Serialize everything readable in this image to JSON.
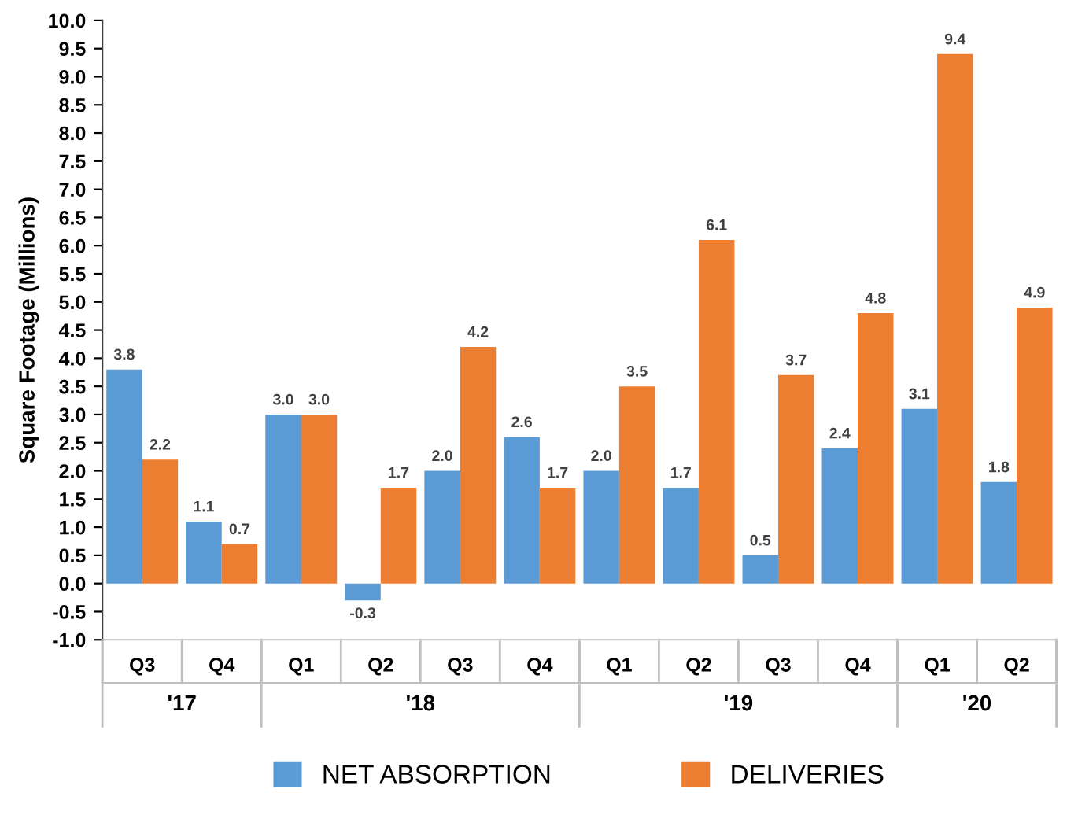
{
  "chart_data": {
    "type": "bar",
    "ylabel": "Square Footage (Millions)",
    "categories": [
      "Q3",
      "Q4",
      "Q1",
      "Q2",
      "Q3",
      "Q4",
      "Q1",
      "Q2",
      "Q3",
      "Q4",
      "Q1",
      "Q2"
    ],
    "series": [
      {
        "name": "NET ABSORPTION",
        "color": "#5b9bd5",
        "values": [
          3.8,
          1.1,
          3.0,
          -0.3,
          2.0,
          2.6,
          2.0,
          1.7,
          0.5,
          2.4,
          3.1,
          1.8
        ],
        "value_labels": [
          "3.8",
          "1.1",
          "3.0",
          "-0.3",
          "2.0",
          "2.6",
          "2.0",
          "1.7",
          "0.5",
          "2.4",
          "3.1",
          "1.8"
        ]
      },
      {
        "name": "DELIVERIES",
        "color": "#ed7d31",
        "values": [
          2.2,
          0.7,
          3.0,
          1.7,
          4.2,
          1.7,
          3.5,
          6.1,
          3.7,
          4.8,
          9.4,
          4.9
        ],
        "value_labels": [
          "2.2",
          "0.7",
          "3.0",
          "1.7",
          "4.2",
          "1.7",
          "3.5",
          "6.1",
          "3.7",
          "4.8",
          "9.4",
          "4.9"
        ]
      }
    ],
    "annotations": [
      "'17",
      "'18",
      "'19",
      "'20"
    ],
    "ylim": [
      -1,
      10
    ],
    "yticks": [
      {
        "value": -1,
        "label": "-1.0"
      },
      {
        "value": -0.5,
        "label": "-0.5"
      },
      {
        "value": 0,
        "label": "0.0"
      },
      {
        "value": 0.5,
        "label": "0.5"
      },
      {
        "value": 1,
        "label": "1.0"
      },
      {
        "value": 1.5,
        "label": "1.5"
      },
      {
        "value": 2,
        "label": "2.0"
      },
      {
        "value": 2.5,
        "label": "2.5"
      },
      {
        "value": 3,
        "label": "3.0"
      },
      {
        "value": 3.5,
        "label": "3.5"
      },
      {
        "value": 4,
        "label": "4.0"
      },
      {
        "value": 4.5,
        "label": "4.5"
      },
      {
        "value": 5,
        "label": "5.0"
      },
      {
        "value": 5.5,
        "label": "5.5"
      },
      {
        "value": 6,
        "label": "6.0"
      },
      {
        "value": 6.5,
        "label": "6.5"
      },
      {
        "value": 7,
        "label": "7.0"
      },
      {
        "value": 7.5,
        "label": "7.5"
      },
      {
        "value": 8,
        "label": "8.0"
      },
      {
        "value": 8.5,
        "label": "8.5"
      },
      {
        "value": 9,
        "label": "9.0"
      },
      {
        "value": 9.5,
        "label": "9.5"
      },
      {
        "value": 10,
        "label": "10.0"
      }
    ],
    "grid": false,
    "legend": "bottom"
  }
}
